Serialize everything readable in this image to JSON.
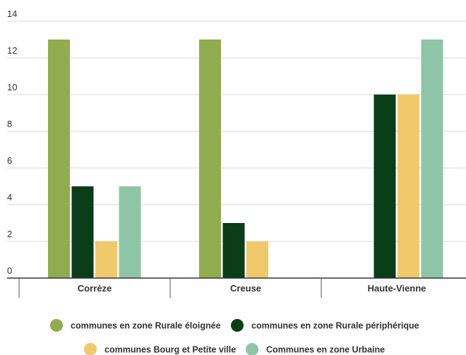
{
  "chart_data": {
    "type": "bar",
    "title": "",
    "xlabel": "",
    "ylabel": "",
    "ylim": [
      0,
      14
    ],
    "yticks": [
      0,
      2,
      4,
      6,
      8,
      10,
      12,
      14
    ],
    "grid": true,
    "legend_position": "bottom",
    "categories": [
      "Corrèze",
      "Creuse",
      "Haute-Vienne"
    ],
    "series": [
      {
        "name": "communes en zone Rurale éloignée",
        "color": "#8fad4e",
        "values": [
          13,
          13,
          0
        ]
      },
      {
        "name": "communes en zone Rurale périphérique",
        "color": "#0a3d18",
        "values": [
          5,
          3,
          10
        ]
      },
      {
        "name": "communes Bourg et Petite ville",
        "color": "#f0c96a",
        "values": [
          2,
          2,
          10
        ]
      },
      {
        "name": "Communes en zone Urbaine",
        "color": "#8ec5a8",
        "values": [
          5,
          0,
          13
        ]
      }
    ]
  }
}
